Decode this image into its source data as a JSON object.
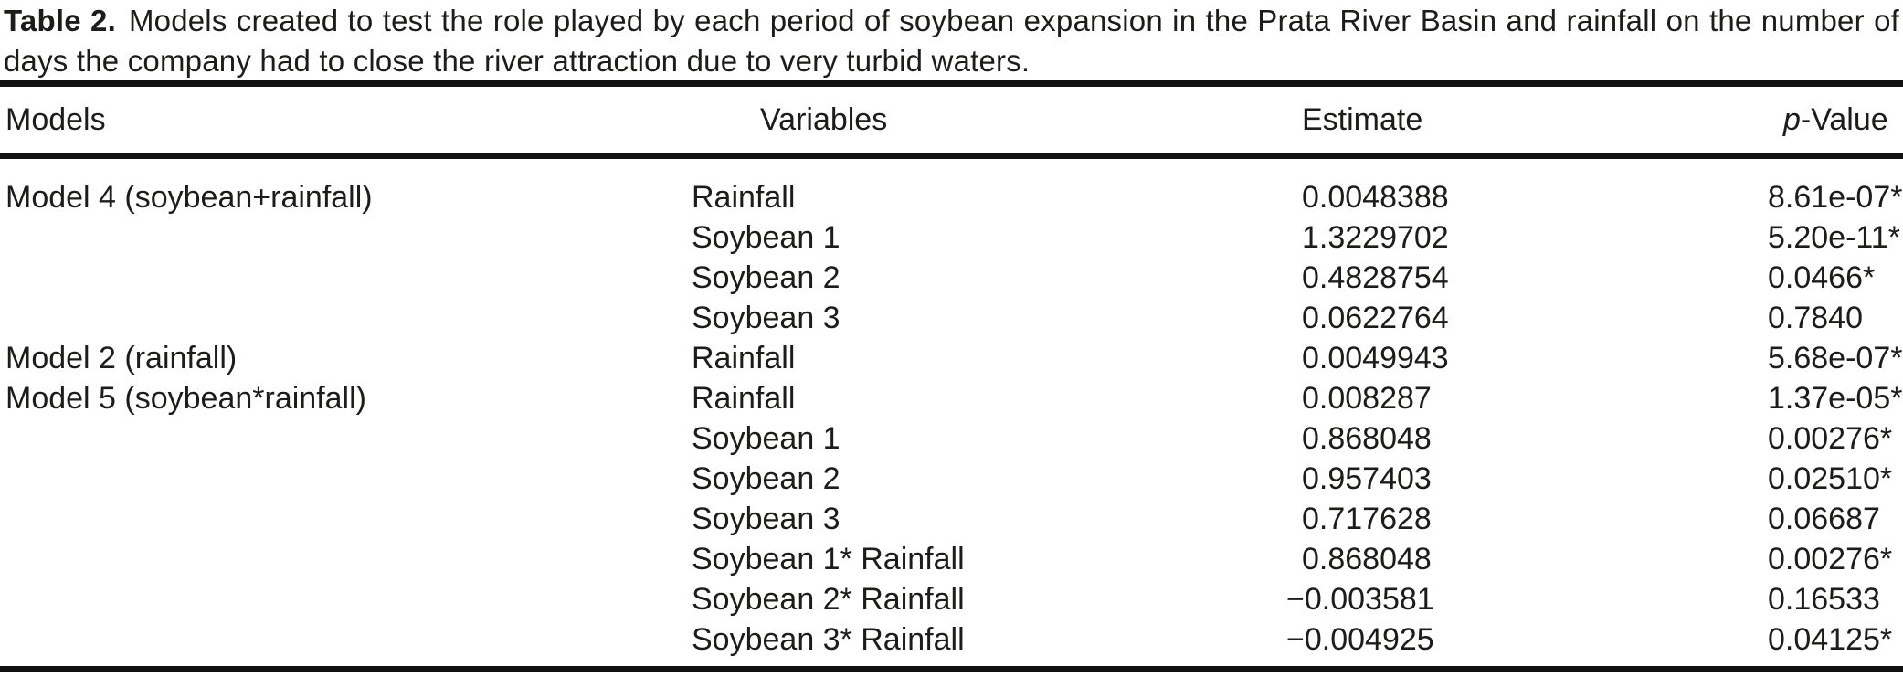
{
  "caption": {
    "label": "Table 2.",
    "text": "Models created to test the role played by each period of soybean expansion in the Prata River Basin and rainfall on the number of days the company had to close the river attraction due to very turbid waters."
  },
  "header": {
    "models": "Models",
    "variables": "Variables",
    "estimate": "Estimate",
    "p_value_italic": "p",
    "p_value_rest": "-Value"
  },
  "table": {
    "rows": [
      {
        "model": "Model 4 (soybean+rainfall)",
        "variable": "Rainfall",
        "estimate": "0.0048388",
        "p_value": "8.61e-07*"
      },
      {
        "model": "",
        "variable": "Soybean 1",
        "estimate": "1.3229702",
        "p_value": "5.20e-11*"
      },
      {
        "model": "",
        "variable": "Soybean 2",
        "estimate": "0.4828754",
        "p_value": "0.0466*"
      },
      {
        "model": "",
        "variable": "Soybean 3",
        "estimate": "0.0622764",
        "p_value": "0.7840"
      },
      {
        "model": "Model 2 (rainfall)",
        "variable": "Rainfall",
        "estimate": "0.0049943",
        "p_value": "5.68e-07*"
      },
      {
        "model": "Model 5 (soybean*rainfall)",
        "variable": "Rainfall",
        "estimate": "0.008287",
        "p_value": "1.37e-05*"
      },
      {
        "model": "",
        "variable": "Soybean 1",
        "estimate": "0.868048",
        "p_value": "0.00276*"
      },
      {
        "model": "",
        "variable": "Soybean 2",
        "estimate": "0.957403",
        "p_value": "0.02510*"
      },
      {
        "model": "",
        "variable": "Soybean 3",
        "estimate": "0.717628",
        "p_value": "0.06687"
      },
      {
        "model": "",
        "variable": "Soybean 1* Rainfall",
        "estimate": "0.868048",
        "p_value": "0.00276*"
      },
      {
        "model": "",
        "variable": "Soybean 2* Rainfall",
        "estimate": "−0.003581",
        "p_value": "0.16533"
      },
      {
        "model": "",
        "variable": "Soybean 3* Rainfall",
        "estimate": "−0.004925",
        "p_value": "0.04125*"
      }
    ]
  },
  "colors": {
    "text": "#1c1c1a",
    "rule": "#111111",
    "background": "#ffffff"
  }
}
